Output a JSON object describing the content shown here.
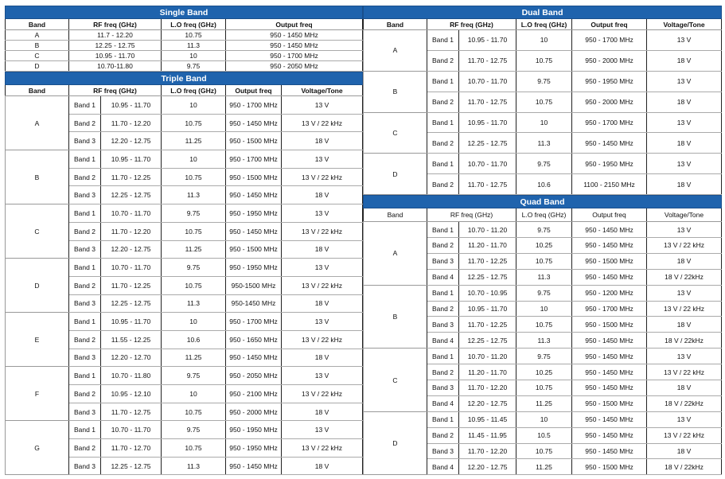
{
  "single": {
    "title": "Single Band",
    "headers": [
      "Band",
      "RF freq (GHz)",
      "L.O freq (GHz)",
      "Output freq"
    ],
    "rows": [
      [
        "A",
        "11.7 - 12.20",
        "10.75",
        "950 - 1450 MHz"
      ],
      [
        "B",
        "12.25 - 12.75",
        "11.3",
        "950 - 1450 MHz"
      ],
      [
        "C",
        "10.95 - 11.70",
        "10",
        "950 - 1700 MHz"
      ],
      [
        "D",
        "10.70-11.80",
        "9.75",
        "950 - 2050 MHz"
      ]
    ]
  },
  "triple": {
    "title": "Triple Band",
    "headers": [
      "Band",
      "RF freq (GHz)",
      "L.O freq (GHz)",
      "Output freq",
      "Voltage/Tone"
    ],
    "groups": [
      {
        "band": "A",
        "rows": [
          [
            "Band 1",
            "10.95 - 11.70",
            "10",
            "950 - 1700 MHz",
            "13 V"
          ],
          [
            "Band 2",
            "11.70 - 12.20",
            "10.75",
            "950 - 1450 MHz",
            "13 V / 22 kHz"
          ],
          [
            "Band 3",
            "12.20 - 12.75",
            "11.25",
            "950 - 1500 MHz",
            "18 V"
          ]
        ]
      },
      {
        "band": "B",
        "rows": [
          [
            "Band 1",
            "10.95 - 11.70",
            "10",
            "950 - 1700 MHz",
            "13 V"
          ],
          [
            "Band 2",
            "11.70 - 12.25",
            "10.75",
            "950 - 1500 MHz",
            "13 V / 22 kHz"
          ],
          [
            "Band 3",
            "12.25 - 12.75",
            "11.3",
            "950 - 1450 MHz",
            "18 V"
          ]
        ]
      },
      {
        "band": "C",
        "rows": [
          [
            "Band 1",
            "10.70 - 11.70",
            "9.75",
            "950 - 1950 MHz",
            "13 V"
          ],
          [
            "Band 2",
            "11.70 - 12.20",
            "10.75",
            "950 - 1450 MHz",
            "13 V / 22 kHz"
          ],
          [
            "Band 3",
            "12.20 - 12.75",
            "11.25",
            "950 - 1500 MHz",
            "18 V"
          ]
        ]
      },
      {
        "band": "D",
        "rows": [
          [
            "Band 1",
            "10.70 - 11.70",
            "9.75",
            "950 - 1950 MHz",
            "13 V"
          ],
          [
            "Band 2",
            "11.70 - 12.25",
            "10.75",
            "950-1500 MHz",
            "13 V / 22 kHz"
          ],
          [
            "Band 3",
            "12.25 - 12.75",
            "11.3",
            "950-1450 MHz",
            "18 V"
          ]
        ]
      },
      {
        "band": "E",
        "rows": [
          [
            "Band 1",
            "10.95 - 11.70",
            "10",
            "950 - 1700 MHz",
            "13 V"
          ],
          [
            "Band 2",
            "11.55 - 12.25",
            "10.6",
            "950 - 1650 MHz",
            "13 V / 22 kHz"
          ],
          [
            "Band 3",
            "12.20 - 12.70",
            "11.25",
            "950 - 1450 MHz",
            "18 V"
          ]
        ]
      },
      {
        "band": "F",
        "rows": [
          [
            "Band 1",
            "10.70 - 11.80",
            "9.75",
            "950 - 2050 MHz",
            "13 V"
          ],
          [
            "Band 2",
            "10.95 - 12.10",
            "10",
            "950 - 2100 MHz",
            "13 V / 22 kHz"
          ],
          [
            "Band 3",
            "11.70 - 12.75",
            "10.75",
            "950 - 2000 MHz",
            "18 V"
          ]
        ]
      },
      {
        "band": "G",
        "rows": [
          [
            "Band 1",
            "10.70 - 11.70",
            "9.75",
            "950 - 1950 MHz",
            "13 V"
          ],
          [
            "Band 2",
            "11.70 - 12.70",
            "10.75",
            "950 - 1950 MHz",
            "13 V / 22 kHz"
          ],
          [
            "Band 3",
            "12.25 - 12.75",
            "11.3",
            "950 - 1450 MHz",
            "18 V"
          ]
        ]
      }
    ]
  },
  "dual": {
    "title": "Dual Band",
    "headers": [
      "Band",
      "RF freq (GHz)",
      "L.O freq (GHz)",
      "Output freq",
      "Voltage/Tone"
    ],
    "groups": [
      {
        "band": "A",
        "rows": [
          [
            "Band 1",
            "10.95 - 11.70",
            "10",
            "950 - 1700 MHz",
            "13 V"
          ],
          [
            "Band 2",
            "11.70 - 12.75",
            "10.75",
            "950 - 2000 MHz",
            "18 V"
          ]
        ]
      },
      {
        "band": "B",
        "rows": [
          [
            "Band 1",
            "10.70 - 11.70",
            "9.75",
            "950 - 1950 MHz",
            "13 V"
          ],
          [
            "Band 2",
            "11.70 - 12.75",
            "10.75",
            "950 - 2000 MHz",
            "18 V"
          ]
        ]
      },
      {
        "band": "C",
        "rows": [
          [
            "Band 1",
            "10.95 - 11.70",
            "10",
            "950 - 1700 MHz",
            "13 V"
          ],
          [
            "Band 2",
            "12.25 - 12.75",
            "11.3",
            "950 - 1450 MHz",
            "18 V"
          ]
        ]
      },
      {
        "band": "D",
        "rows": [
          [
            "Band 1",
            "10.70 - 11.70",
            "9.75",
            "950 - 1950 MHz",
            "13 V"
          ],
          [
            "Band 2",
            "11.70 - 12.75",
            "10.6",
            "1100 - 2150 MHz",
            "18 V"
          ]
        ]
      }
    ]
  },
  "quad": {
    "title": "Quad Band",
    "headers": [
      "Band",
      "RF freq (GHz)",
      "L.O freq (GHz)",
      "Output freq",
      "Voltage/Tone"
    ],
    "groups": [
      {
        "band": "A",
        "rows": [
          [
            "Band 1",
            "10.70 - 11.20",
            "9.75",
            "950 - 1450 MHz",
            "13 V"
          ],
          [
            "Band 2",
            "11.20 - 11.70",
            "10.25",
            "950 - 1450 MHz",
            "13 V / 22 kHz"
          ],
          [
            "Band 3",
            "11.70 - 12.25",
            "10.75",
            "950 - 1500 MHz",
            "18 V"
          ],
          [
            "Band 4",
            "12.25 - 12.75",
            "11.3",
            "950 - 1450 MHz",
            "18 V / 22kHz"
          ]
        ]
      },
      {
        "band": "B",
        "rows": [
          [
            "Band 1",
            "10.70 - 10.95",
            "9.75",
            "950 - 1200 MHz",
            "13 V"
          ],
          [
            "Band 2",
            "10.95 - 11.70",
            "10",
            "950 - 1700 MHz",
            "13 V / 22 kHz"
          ],
          [
            "Band 3",
            "11.70 - 12.25",
            "10.75",
            "950 - 1500 MHz",
            "18 V"
          ],
          [
            "Band 4",
            "12.25 - 12.75",
            "11.3",
            "950 - 1450 MHz",
            "18 V / 22kHz"
          ]
        ]
      },
      {
        "band": "C",
        "rows": [
          [
            "Band 1",
            "10.70 - 11.20",
            "9.75",
            "950 - 1450 MHz",
            "13 V"
          ],
          [
            "Band 2",
            "11.20 - 11.70",
            "10.25",
            "950 - 1450 MHz",
            "13 V / 22 kHz"
          ],
          [
            "Band 3",
            "11.70 - 12.20",
            "10.75",
            "950 - 1450 MHz",
            "18 V"
          ],
          [
            "Band 4",
            "12.20 - 12.75",
            "11.25",
            "950 - 1500 MHz",
            "18 V / 22kHz"
          ]
        ]
      },
      {
        "band": "D",
        "rows": [
          [
            "Band 1",
            "10.95 - 11.45",
            "10",
            "950 - 1450 MHz",
            "13 V"
          ],
          [
            "Band 2",
            "11.45 - 11.95",
            "10.5",
            "950 - 1450 MHz",
            "13 V / 22 kHz"
          ],
          [
            "Band 3",
            "11.70 - 12.20",
            "10.75",
            "950 - 1450 MHz",
            "18 V"
          ],
          [
            "Band 4",
            "12.20 - 12.75",
            "11.25",
            "950 - 1500 MHz",
            "18 V / 22kHz"
          ]
        ]
      }
    ]
  }
}
